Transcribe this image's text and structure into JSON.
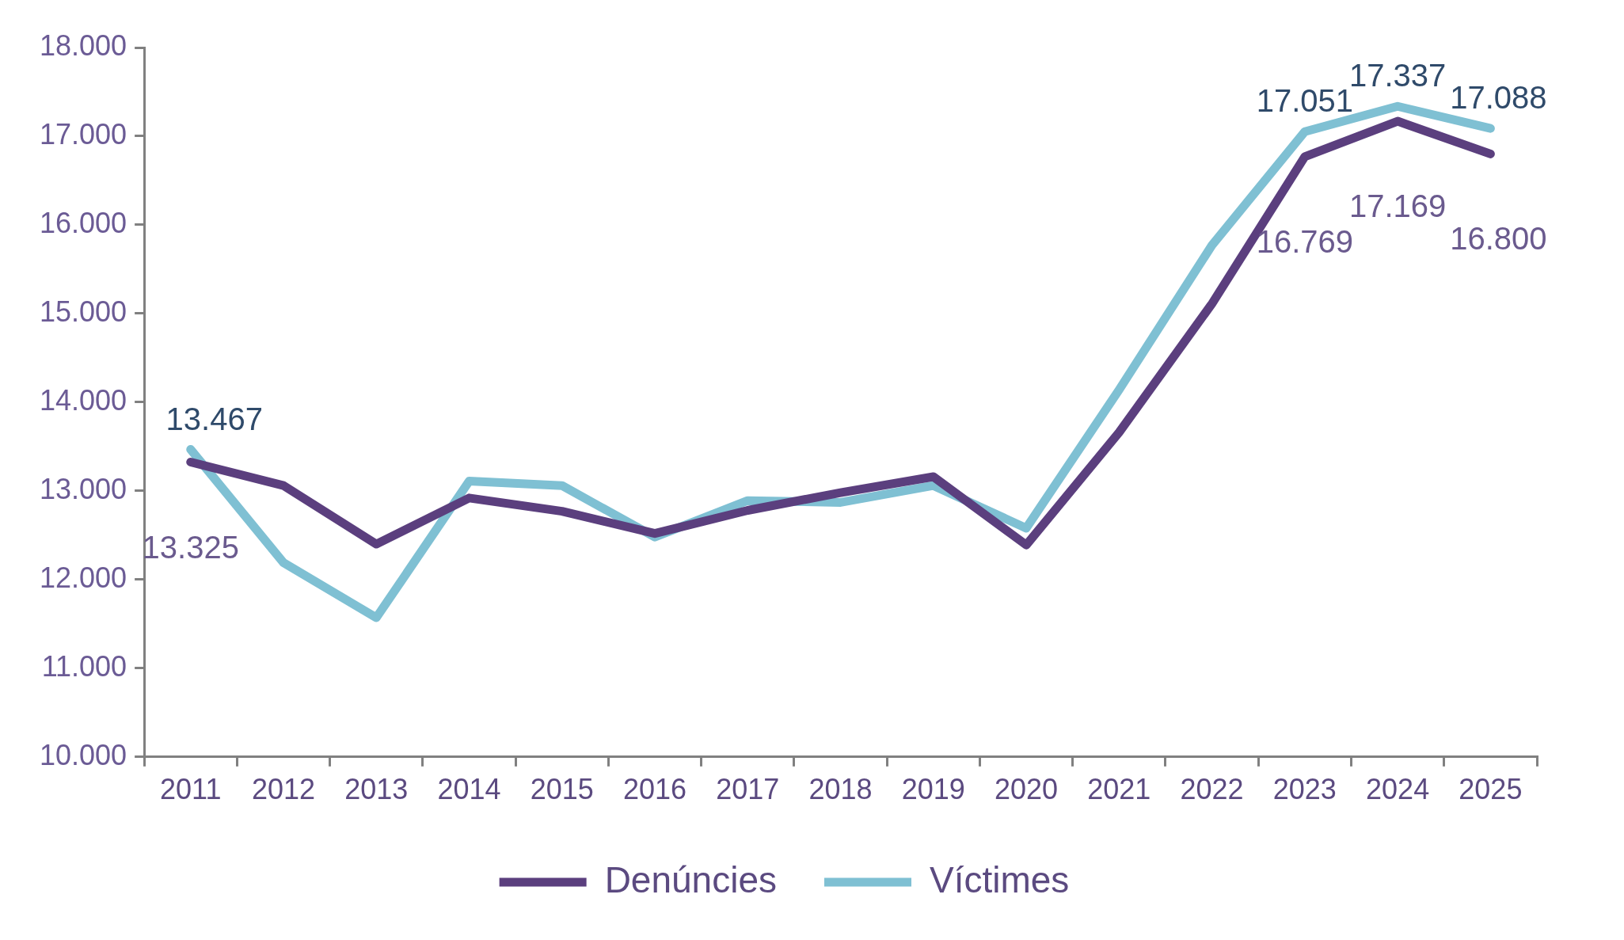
{
  "chart_data": {
    "type": "line",
    "categories": [
      "2011",
      "2012",
      "2013",
      "2014",
      "2015",
      "2016",
      "2017",
      "2018",
      "2019",
      "2020",
      "2021",
      "2022",
      "2023",
      "2024",
      "2025"
    ],
    "series": [
      {
        "name": "Denúncies",
        "color": "#5b3f7e",
        "values": [
          13325,
          13060,
          12400,
          12920,
          12770,
          12520,
          12780,
          12980,
          13160,
          12390,
          13660,
          15110,
          16769,
          17169,
          16800
        ],
        "value_labels": [
          "13.325",
          null,
          null,
          null,
          null,
          null,
          null,
          null,
          null,
          null,
          null,
          null,
          "16.769",
          "17.169",
          "16.800"
        ]
      },
      {
        "name": "Víctimes",
        "color": "#7fc0d3",
        "values": [
          13467,
          12190,
          11570,
          13110,
          13060,
          12480,
          12890,
          12870,
          13060,
          12580,
          14140,
          15770,
          17051,
          17337,
          17088
        ],
        "value_labels": [
          "13.467",
          null,
          null,
          null,
          null,
          null,
          null,
          null,
          null,
          null,
          null,
          null,
          "17.051",
          "17.337",
          "17.088"
        ]
      }
    ],
    "ylim": [
      10000,
      18000
    ],
    "yticks": [
      {
        "value": 10000,
        "label": "10.000"
      },
      {
        "value": 11000,
        "label": "11.000"
      },
      {
        "value": 12000,
        "label": "12.000"
      },
      {
        "value": 13000,
        "label": "13.000"
      },
      {
        "value": 14000,
        "label": "14.000"
      },
      {
        "value": 15000,
        "label": "15.000"
      },
      {
        "value": 16000,
        "label": "16.000"
      },
      {
        "value": 17000,
        "label": "17.000"
      },
      {
        "value": 18000,
        "label": "18.000"
      }
    ],
    "grid": false,
    "legend": "bottom",
    "marker": "none",
    "line_style": "solid"
  }
}
